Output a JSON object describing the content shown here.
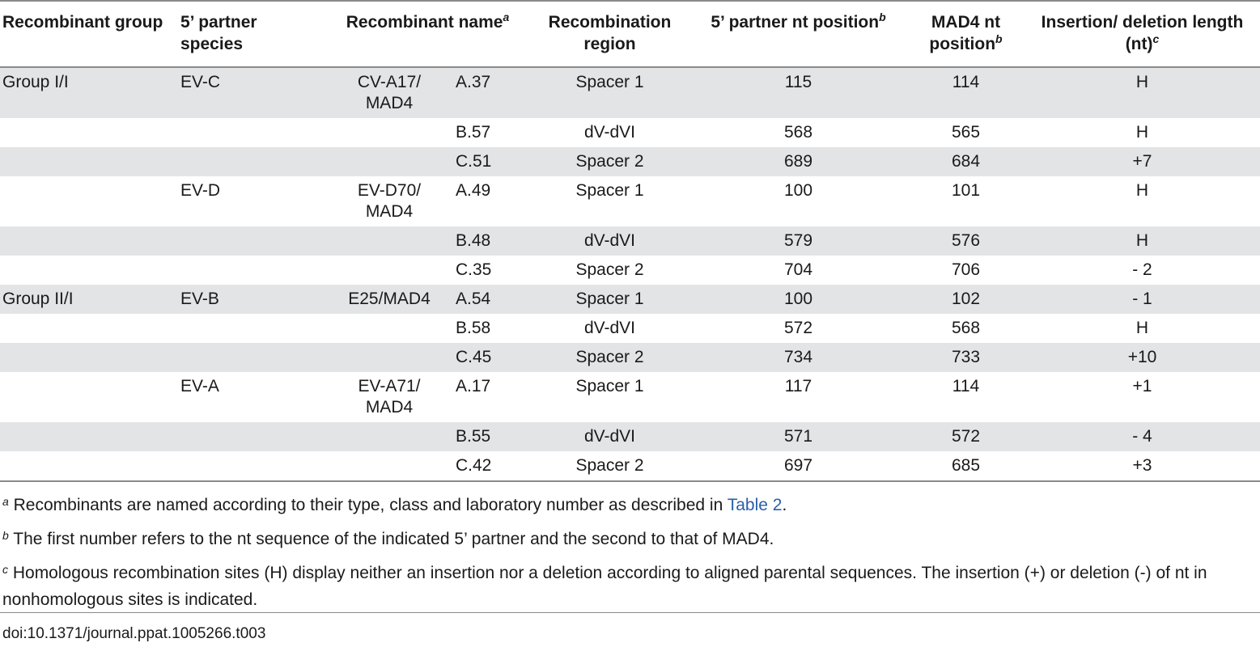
{
  "headers": {
    "group": "Recombinant group",
    "species": "5’ partner species",
    "name": "Recombinant name",
    "name_sup": "a",
    "region": "Recombination region",
    "pos5": "5’ partner nt position",
    "pos5_sup": "b",
    "mad4": "MAD4 nt position",
    "mad4_sup": "b",
    "indel": "Insertion/ deletion length (nt)",
    "indel_sup": "c"
  },
  "rows": [
    {
      "group": "Group I/I",
      "species": "EV-C",
      "name": "CV-A17/ MAD4",
      "clone": "A.37",
      "region": "Spacer 1",
      "pos5": "115",
      "mad4": "114",
      "indel": "H"
    },
    {
      "group": "",
      "species": "",
      "name": "",
      "clone": "B.57",
      "region": "dV-dVI",
      "pos5": "568",
      "mad4": "565",
      "indel": "H"
    },
    {
      "group": "",
      "species": "",
      "name": "",
      "clone": "C.51",
      "region": "Spacer 2",
      "pos5": "689",
      "mad4": "684",
      "indel": "+7"
    },
    {
      "group": "",
      "species": "EV-D",
      "name": "EV-D70/ MAD4",
      "clone": "A.49",
      "region": "Spacer 1",
      "pos5": "100",
      "mad4": "101",
      "indel": "H"
    },
    {
      "group": "",
      "species": "",
      "name": "",
      "clone": "B.48",
      "region": "dV-dVI",
      "pos5": "579",
      "mad4": "576",
      "indel": "H"
    },
    {
      "group": "",
      "species": "",
      "name": "",
      "clone": "C.35",
      "region": "Spacer 2",
      "pos5": "704",
      "mad4": "706",
      "indel": "- 2"
    },
    {
      "group": "Group II/I",
      "species": "EV-B",
      "name": "E25/MAD4",
      "clone": "A.54",
      "region": "Spacer 1",
      "pos5": "100",
      "mad4": "102",
      "indel": "- 1"
    },
    {
      "group": "",
      "species": "",
      "name": "",
      "clone": "B.58",
      "region": "dV-dVI",
      "pos5": "572",
      "mad4": "568",
      "indel": "H"
    },
    {
      "group": "",
      "species": "",
      "name": "",
      "clone": "C.45",
      "region": "Spacer 2",
      "pos5": "734",
      "mad4": "733",
      "indel": "+10"
    },
    {
      "group": "",
      "species": "EV-A",
      "name": "EV-A71/ MAD4",
      "clone": "A.17",
      "region": "Spacer 1",
      "pos5": "117",
      "mad4": "114",
      "indel": "+1"
    },
    {
      "group": "",
      "species": "",
      "name": "",
      "clone": "B.55",
      "region": "dV-dVI",
      "pos5": "571",
      "mad4": "572",
      "indel": "- 4"
    },
    {
      "group": "",
      "species": "",
      "name": "",
      "clone": "C.42",
      "region": "Spacer 2",
      "pos5": "697",
      "mad4": "685",
      "indel": "+3"
    }
  ],
  "footnotes": {
    "a_mark": "a",
    "a_text": "Recombinants are named according to their type, class and laboratory number as described in",
    "a_link": "Table 2",
    "a_end": ".",
    "b_mark": "b",
    "b_text": "The first number refers to the nt sequence of the indicated 5’ partner and the second to that of MAD4.",
    "c_mark": "c",
    "c_text": "Homologous recombination sites (H) display neither an insertion nor a deletion according to aligned parental sequences. The insertion (+) or deletion (-) of nt in nonhomologous sites is indicated."
  },
  "doi": "doi:10.1371/journal.ppat.1005266.t003",
  "colors": {
    "shade": "#e3e4e6",
    "link": "#2a5fa8",
    "rule": "#8a8a8a"
  }
}
